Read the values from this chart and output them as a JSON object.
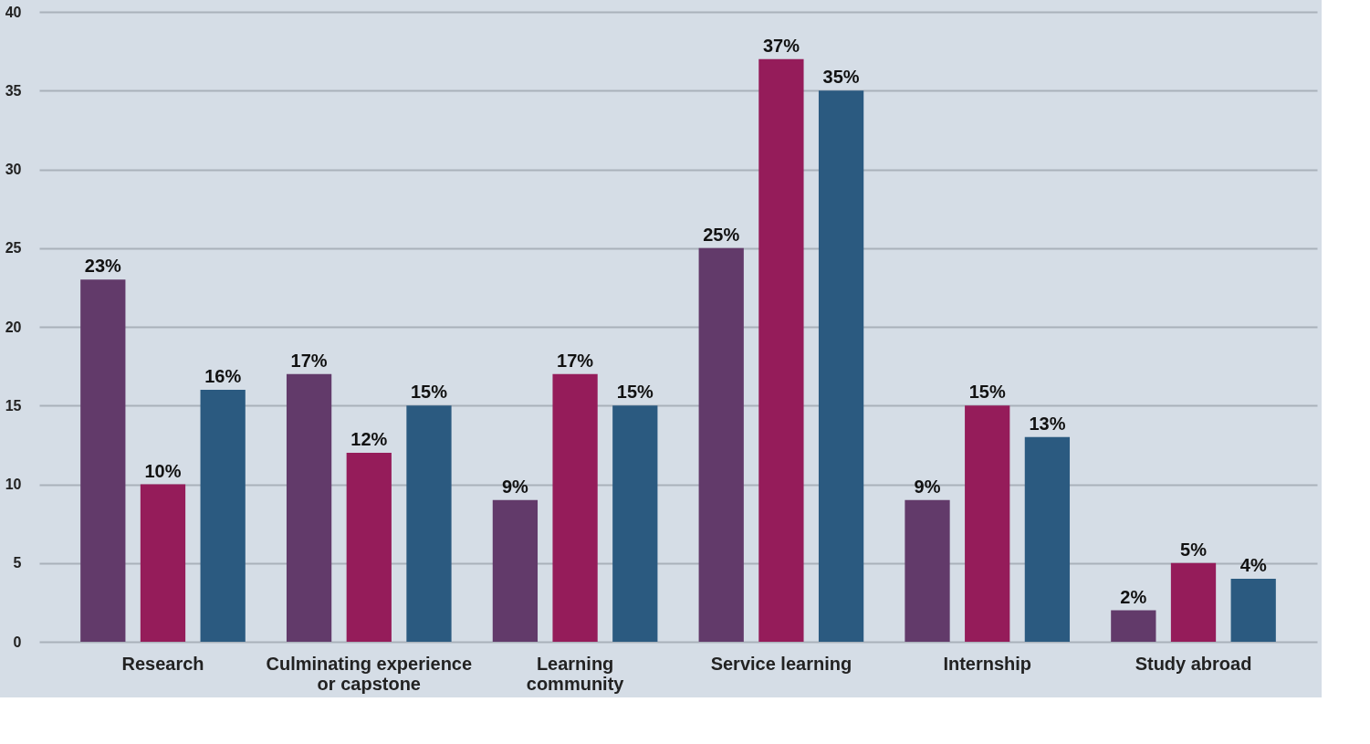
{
  "chart_data": {
    "type": "bar",
    "categories": [
      "Research",
      "Culminating experience\nor capstone",
      "Learning\ncommunity",
      "Service learning",
      "Internship",
      "Study abroad"
    ],
    "series": [
      {
        "color": "#623a6a",
        "values": [
          23,
          17,
          9,
          25,
          9,
          2
        ],
        "value_labels": [
          "23%",
          "17%",
          "9%",
          "25%",
          "9%",
          "2%"
        ]
      },
      {
        "color": "#951c5a",
        "values": [
          10,
          12,
          17,
          37,
          15,
          5
        ],
        "value_labels": [
          "10%",
          "12%",
          "17%",
          "37%",
          "15%",
          "5%"
        ]
      },
      {
        "color": "#2b5a80",
        "values": [
          16,
          15,
          15,
          35,
          13,
          4
        ],
        "value_labels": [
          "16%",
          "15%",
          "15%",
          "35%",
          "13%",
          "4%"
        ]
      }
    ],
    "ylim": [
      0,
      40
    ],
    "yticks": [
      0,
      5,
      10,
      15,
      20,
      25,
      30,
      35,
      40
    ],
    "grid": "y",
    "legend": false
  }
}
